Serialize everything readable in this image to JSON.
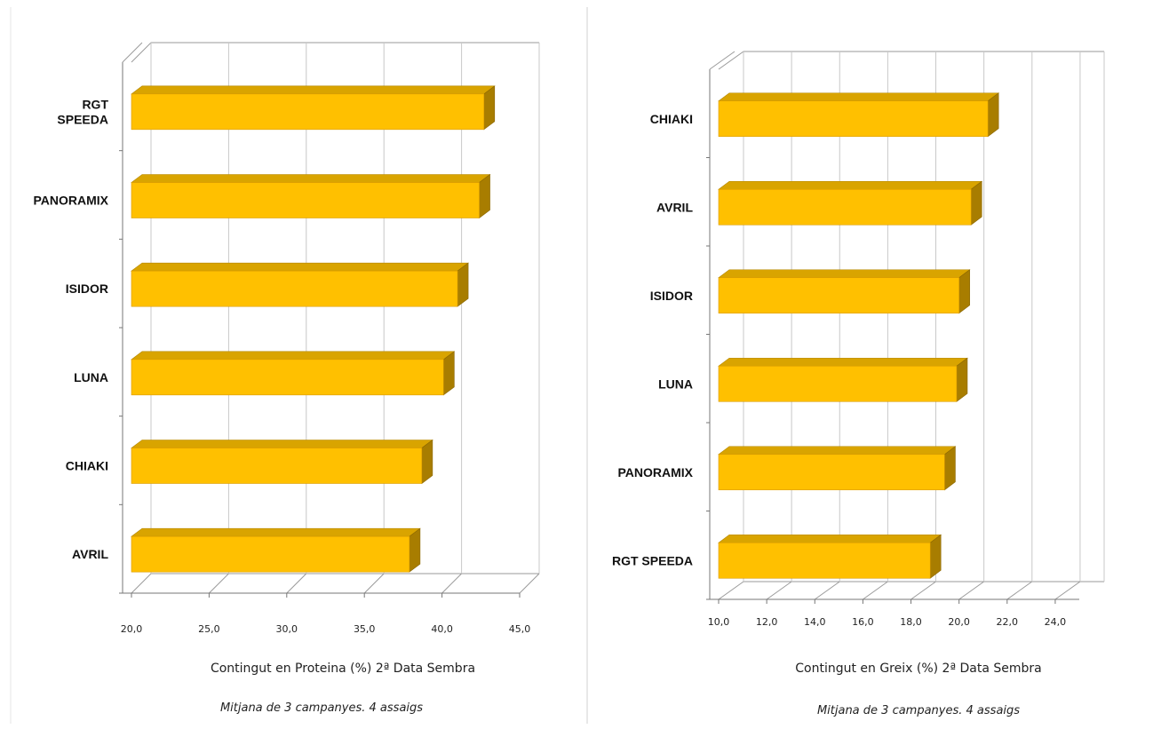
{
  "chart_data": [
    {
      "type": "bar",
      "orientation": "horizontal",
      "three_d": true,
      "categories": [
        "RGT SPEEDA",
        "PANORAMIX",
        "ISIDOR",
        "LUNA",
        "CHIAKI",
        "AVRIL"
      ],
      "category_lines": [
        [
          "RGT",
          "SPEEDA"
        ],
        [
          "PANORAMIX"
        ],
        [
          "ISIDOR"
        ],
        [
          "LUNA"
        ],
        [
          "CHIAKI"
        ],
        [
          "AVRIL"
        ]
      ],
      "values": [
        42.7,
        42.4,
        41.0,
        40.1,
        38.7,
        37.9
      ],
      "xlim": [
        20,
        45
      ],
      "xticks": [
        "20,0",
        "25,0",
        "30,0",
        "35,0",
        "40,0",
        "45,0"
      ],
      "xlabel": "Contingut en Proteina (%) 2ª Data Sembra",
      "caption": "Mitjana de 3 campanyes. 4 assaigs",
      "grid": true,
      "bar_color": "#FFC000"
    },
    {
      "type": "bar",
      "orientation": "horizontal",
      "three_d": true,
      "categories": [
        "CHIAKI",
        "AVRIL",
        "ISIDOR",
        "LUNA",
        "PANORAMIX",
        "RGT SPEEDA"
      ],
      "category_lines": [
        [
          "CHIAKI"
        ],
        [
          "AVRIL"
        ],
        [
          "ISIDOR"
        ],
        [
          "LUNA"
        ],
        [
          "PANORAMIX"
        ],
        [
          "RGT SPEEDA"
        ]
      ],
      "values": [
        21.2,
        20.5,
        20.0,
        19.9,
        19.4,
        18.8
      ],
      "xlim": [
        10,
        25
      ],
      "xticks": [
        "10,0",
        "12,0",
        "14,0",
        "16,0",
        "18,0",
        "20,0",
        "22,0",
        "24,0"
      ],
      "xlabel": "Contingut en Greix (%) 2ª Data Sembra",
      "caption": "Mitjana de 3 campanyes. 4 assaigs",
      "grid": true,
      "bar_color": "#FFC000"
    }
  ]
}
